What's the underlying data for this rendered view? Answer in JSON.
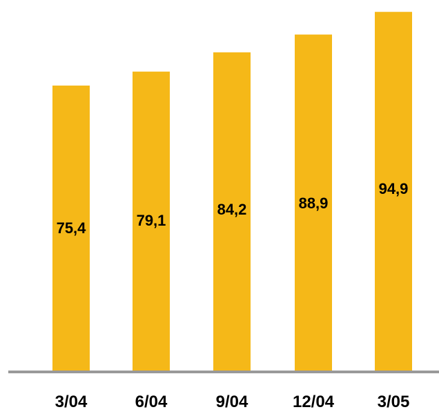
{
  "chart_data": {
    "type": "bar",
    "categories": [
      "3/04",
      "6/04",
      "9/04",
      "12/04",
      "3/05"
    ],
    "values": [
      75.4,
      79.1,
      84.2,
      88.9,
      94.9
    ],
    "value_labels": [
      "75,4",
      "79,1",
      "84,2",
      "88,9",
      "94,9"
    ],
    "title": "",
    "xlabel": "",
    "ylabel": "",
    "ylim": [
      0,
      96.4
    ],
    "grid": false,
    "legend": "none",
    "colors": {
      "bar": "#F5B818",
      "axis": "#999999",
      "text": "#000000"
    }
  }
}
